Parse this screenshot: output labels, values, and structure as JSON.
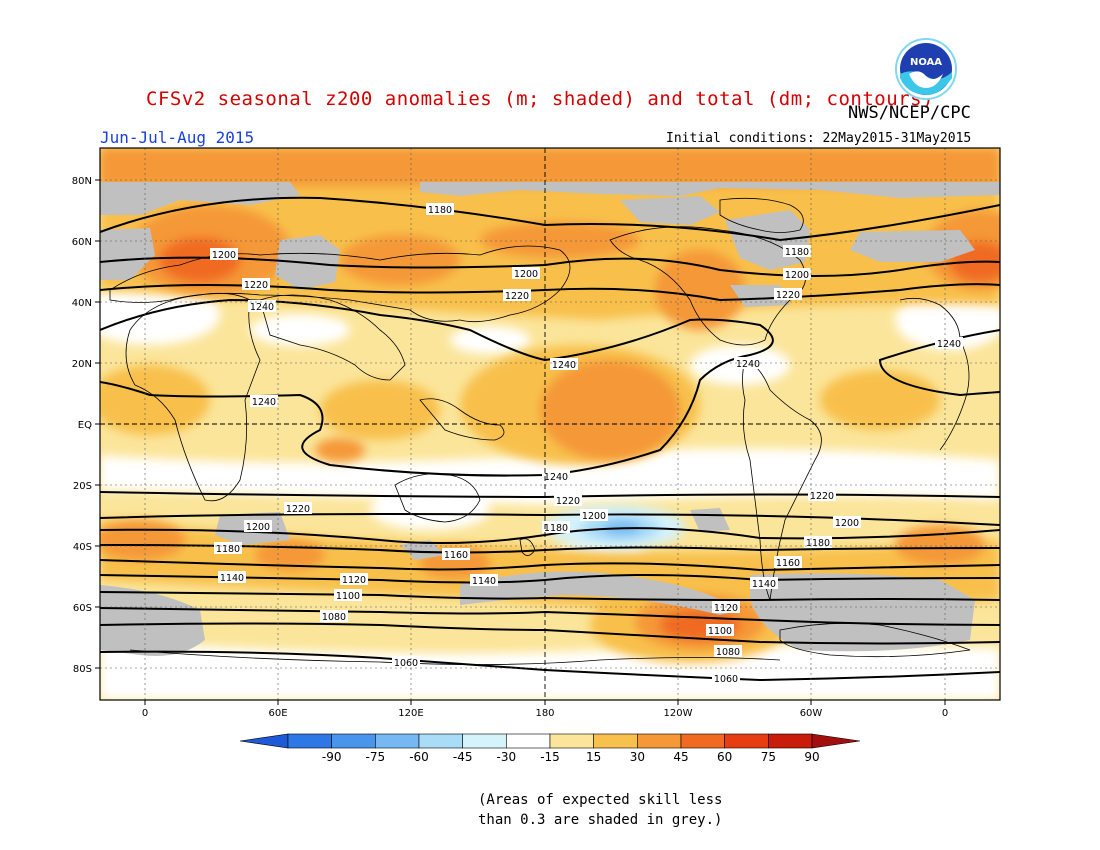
{
  "title": "CFSv2 seasonal z200 anomalies (m; shaded) and total (dm; contours)",
  "agency": "NWS/NCEP/CPC",
  "season": "Jun-Jul-Aug 2015",
  "initial_conditions": "Initial conditions: 22May2015-31May2015",
  "logo_text": "NOAA",
  "note": [
    "(Areas of expected skill less",
    "than 0.3 are shaded in grey.)"
  ],
  "lat_labels": [
    "80N",
    "60N",
    "40N",
    "20N",
    "EQ",
    "20S",
    "40S",
    "60S",
    "80S"
  ],
  "lon_labels": [
    "0",
    "60E",
    "120E",
    "180",
    "120W",
    "60W",
    "0"
  ],
  "colorbar": {
    "labels": [
      "-90",
      "-75",
      "-60",
      "-45",
      "-30",
      "-15",
      "15",
      "30",
      "45",
      "60",
      "75",
      "90"
    ],
    "colors": [
      "#1e5ad8",
      "#2e78e6",
      "#4a95ec",
      "#76b8f2",
      "#a8dcf7",
      "#d4f3fb",
      "#ffffff",
      "#fbe59a",
      "#f8c04c",
      "#f59838",
      "#f06a22",
      "#e63e10",
      "#c81d0a",
      "#a30f0f"
    ]
  },
  "contour_labels": {
    "c1180_n": "1180",
    "c1180_n2": "1180",
    "c1200_n": "1200",
    "c1200_n2": "1200",
    "c1200_n3": "1200",
    "c1220_n": "1220",
    "c1220_n2": "1220",
    "c1220_n3": "1220",
    "c1240_n": "1240",
    "c1240_n2": "1240",
    "c1240_n3": "1240",
    "c1240_n4": "1240",
    "c1240_n5": "1240",
    "c1240_s": "1240",
    "c1220_s": "1220",
    "c1220_s2": "1220",
    "c1220_s3": "1220",
    "c1200_s": "1200",
    "c1200_s2": "1200",
    "c1200_s3": "1200",
    "c1180_s": "1180",
    "c1180_s2": "1180",
    "c1180_s3": "1180",
    "c1160_s": "1160",
    "c1160_s2": "1160",
    "c1140_s": "1140",
    "c1140_s2": "1140",
    "c1140_s3": "1140",
    "c1120_s": "1120",
    "c1120_s2": "1120",
    "c1100_s": "1100",
    "c1100_s2": "1100",
    "c1080_s": "1080",
    "c1080_s2": "1080",
    "c1060_s": "1060",
    "c1060_s2": "1060"
  }
}
